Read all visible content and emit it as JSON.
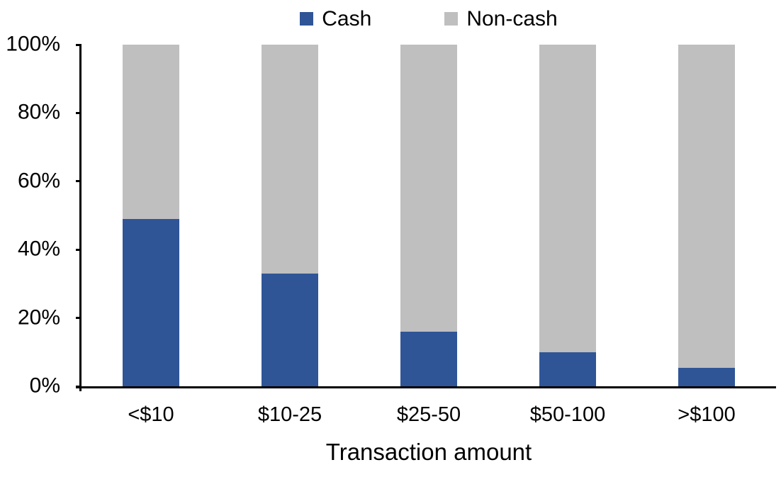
{
  "chart_data": {
    "type": "bar",
    "stacked": true,
    "percent_stacked": true,
    "title": "",
    "xlabel": "Transaction amount",
    "ylabel": "",
    "categories": [
      "<$10",
      "$10-25",
      "$25-50",
      "$50-100",
      ">$100"
    ],
    "series": [
      {
        "name": "Cash",
        "color": "#2F5597",
        "values": [
          49,
          33,
          16,
          10,
          5.5
        ]
      },
      {
        "name": "Non-cash",
        "color": "#BFBFBF",
        "values": [
          51,
          67,
          84,
          90,
          94.5
        ]
      }
    ],
    "ylim": [
      0,
      100
    ],
    "ytick_step": 20,
    "ytick_labels": [
      "0%",
      "20%",
      "40%",
      "60%",
      "80%",
      "100%"
    ],
    "legend_position": "top",
    "grid": false,
    "axis_color": "#000000",
    "text_color": "#000000"
  }
}
